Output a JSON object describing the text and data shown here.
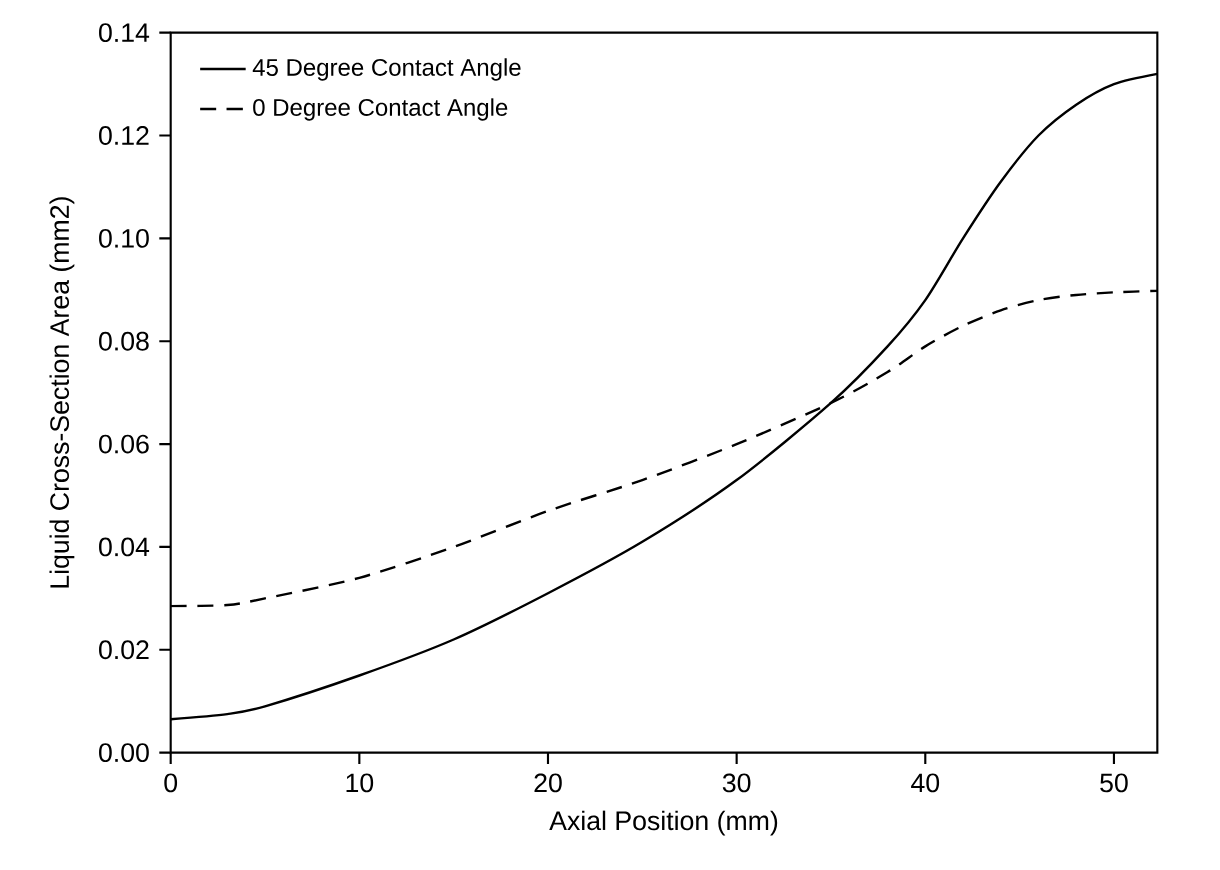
{
  "chart_data": {
    "type": "line",
    "xlabel": "Axial Position (mm)",
    "ylabel": "Liquid Cross-Section Area (mm2)",
    "xlim": [
      0,
      52.3
    ],
    "ylim": [
      0,
      0.14
    ],
    "xticks": [
      0,
      10,
      20,
      30,
      40,
      50
    ],
    "yticks": [
      {
        "value": 0,
        "label": "0.00"
      },
      {
        "value": 0.02,
        "label": "0.02"
      },
      {
        "value": 0.04,
        "label": "0.04"
      },
      {
        "value": 0.06,
        "label": "0.06"
      },
      {
        "value": 0.08,
        "label": "0.08"
      },
      {
        "value": 0.1,
        "label": "0.10"
      },
      {
        "value": 0.12,
        "label": "0.12"
      },
      {
        "value": 0.14,
        "label": "0.14"
      }
    ],
    "grid": false,
    "legend": "top left",
    "x": [
      0,
      3,
      5,
      10,
      15,
      20,
      25,
      30,
      35,
      38,
      40,
      42,
      44,
      46,
      48,
      50,
      52.3
    ],
    "series": [
      {
        "name": "45 Degree Contact Angle",
        "color": "#000000",
        "line_style": "solid",
        "values": [
          0.0065,
          0.0075,
          0.009,
          0.015,
          0.022,
          0.031,
          0.041,
          0.053,
          0.068,
          0.079,
          0.088,
          0.1,
          0.111,
          0.12,
          0.126,
          0.13,
          0.132
        ]
      },
      {
        "name": "0 Degree Contact Angle",
        "color": "#000000",
        "line_style": "dashed",
        "values": [
          0.0285,
          0.0287,
          0.03,
          0.034,
          0.04,
          0.047,
          0.053,
          0.06,
          0.068,
          0.074,
          0.079,
          0.083,
          0.086,
          0.088,
          0.089,
          0.0895,
          0.0898
        ]
      }
    ]
  }
}
